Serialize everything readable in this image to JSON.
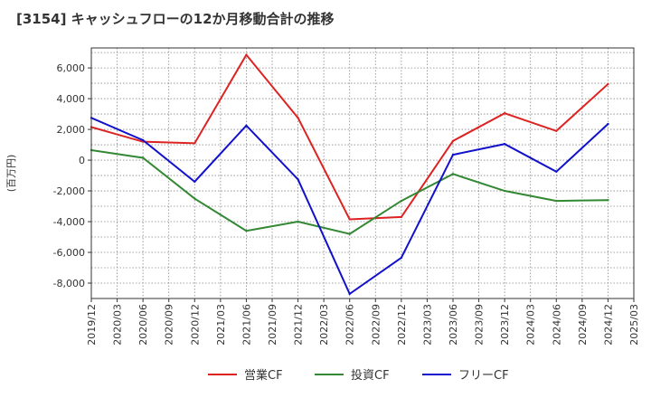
{
  "chart_data": {
    "type": "line",
    "title": "[3154]  キャッシュフローの12か月移動合計の推移",
    "ylabel": "(百万円)",
    "xlabel": "",
    "x": [
      "2019/12",
      "2020/03",
      "2020/06",
      "2020/09",
      "2020/12",
      "2021/03",
      "2021/06",
      "2021/09",
      "2021/12",
      "2022/03",
      "2022/06",
      "2022/09",
      "2022/12",
      "2023/03",
      "2023/06",
      "2023/09",
      "2023/12",
      "2024/03",
      "2024/06",
      "2024/09",
      "2024/12",
      "2025/03"
    ],
    "ylim": [
      -9000,
      7300
    ],
    "yticks": [
      6000,
      4000,
      2000,
      0,
      -2000,
      -4000,
      -6000,
      -8000
    ],
    "ytick_labels": [
      "6,000",
      "4,000",
      "2,000",
      "0",
      "-2,000",
      "-4,000",
      "-6,000",
      "-8,000"
    ],
    "grid": true,
    "legend_position": "bottom",
    "series": [
      {
        "name": "営業CF",
        "color": "#dd2222",
        "values": [
          2150,
          null,
          1200,
          null,
          1100,
          null,
          6850,
          null,
          2750,
          null,
          -3850,
          null,
          -3700,
          null,
          1250,
          null,
          3050,
          null,
          1900,
          null,
          4950,
          null
        ]
      },
      {
        "name": "投資CF",
        "color": "#338833",
        "values": [
          650,
          null,
          150,
          null,
          -2500,
          null,
          -4600,
          null,
          -4000,
          null,
          -4800,
          null,
          -2650,
          null,
          -900,
          null,
          -2000,
          null,
          -2650,
          null,
          -2600,
          null
        ]
      },
      {
        "name": "フリーCF",
        "color": "#1111cc",
        "values": [
          2750,
          null,
          1300,
          null,
          -1400,
          null,
          2250,
          null,
          -1250,
          null,
          -8700,
          null,
          -6350,
          null,
          350,
          null,
          1050,
          null,
          -750,
          null,
          2350,
          null
        ]
      }
    ]
  }
}
